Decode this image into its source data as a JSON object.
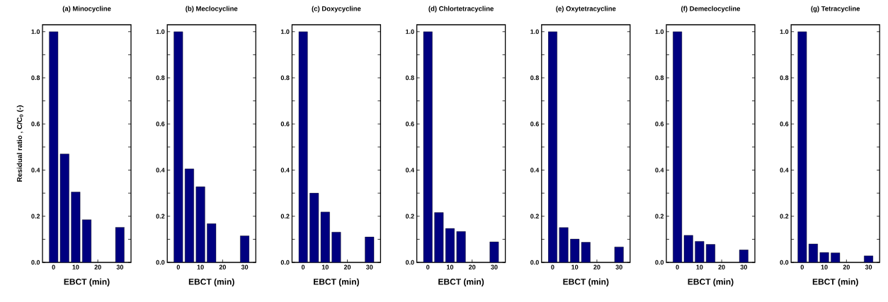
{
  "chart_data": [
    {
      "type": "bar",
      "title": "(a) Minocycline",
      "xlabel": "EBCT  (min)",
      "ylabel": "Residual ratio , C/C$_{0}$  (-)",
      "x": [
        0,
        5,
        10,
        15,
        30
      ],
      "values": [
        1.0,
        0.47,
        0.305,
        0.185,
        0.152
      ],
      "color": "#000080",
      "xlim": [
        -5,
        35
      ],
      "xticks": [
        0,
        10,
        20,
        30
      ],
      "ylim": [
        0,
        1.03
      ],
      "yticks": [
        {
          "value": 0,
          "label": "0.0"
        },
        {
          "value": 0.1,
          "label": null
        },
        0.2,
        {
          "value": 0.3,
          "label": null
        },
        0.4,
        {
          "value": 0.5,
          "label": null
        },
        0.6,
        {
          "value": 0.7,
          "label": null
        },
        0.8,
        {
          "value": 0.9,
          "label": null
        },
        {
          "value": 1,
          "label": "1.0"
        }
      ]
    },
    {
      "type": "bar",
      "title": "(b) Meclocycline",
      "xlabel": "EBCT  (min)",
      "x": [
        0,
        5,
        10,
        15,
        30
      ],
      "values": [
        1.0,
        0.405,
        0.328,
        0.168,
        0.115
      ],
      "color": "#000080",
      "xlim": [
        -5,
        35
      ],
      "xticks": [
        0,
        10,
        20,
        30
      ],
      "ylim": [
        0,
        1.03
      ],
      "yticks": [
        {
          "value": 0,
          "label": "0.0"
        },
        {
          "value": 0.1,
          "label": null
        },
        0.2,
        {
          "value": 0.3,
          "label": null
        },
        0.4,
        {
          "value": 0.5,
          "label": null
        },
        0.6,
        {
          "value": 0.7,
          "label": null
        },
        0.8,
        {
          "value": 0.9,
          "label": null
        },
        {
          "value": 1,
          "label": "1.0"
        }
      ]
    },
    {
      "type": "bar",
      "title": "(c) Doxycycline",
      "xlabel": "EBCT  (min)",
      "x": [
        0,
        5,
        10,
        15,
        30
      ],
      "values": [
        1.0,
        0.3,
        0.218,
        0.131,
        0.11
      ],
      "color": "#000080",
      "xlim": [
        -5,
        35
      ],
      "xticks": [
        0,
        10,
        20,
        30
      ],
      "ylim": [
        0,
        1.03
      ],
      "yticks": [
        {
          "value": 0,
          "label": "0.0"
        },
        {
          "value": 0.1,
          "label": null
        },
        0.2,
        {
          "value": 0.3,
          "label": null
        },
        0.4,
        {
          "value": 0.5,
          "label": null
        },
        0.6,
        {
          "value": 0.7,
          "label": null
        },
        0.8,
        {
          "value": 0.9,
          "label": null
        },
        {
          "value": 1,
          "label": "1.0"
        }
      ]
    },
    {
      "type": "bar",
      "title": "(d) Chlortetracycline",
      "xlabel": "EBCT  (min)",
      "x": [
        0,
        5,
        10,
        15,
        30
      ],
      "values": [
        1.0,
        0.216,
        0.147,
        0.134,
        0.089
      ],
      "color": "#000080",
      "xlim": [
        -5,
        35
      ],
      "xticks": [
        0,
        10,
        20,
        30
      ],
      "ylim": [
        0,
        1.03
      ],
      "yticks": [
        {
          "value": 0,
          "label": "0.0"
        },
        {
          "value": 0.1,
          "label": null
        },
        0.2,
        {
          "value": 0.3,
          "label": null
        },
        0.4,
        {
          "value": 0.5,
          "label": null
        },
        0.6,
        {
          "value": 0.7,
          "label": null
        },
        0.8,
        {
          "value": 0.9,
          "label": null
        },
        {
          "value": 1,
          "label": "1.0"
        }
      ]
    },
    {
      "type": "bar",
      "title": "(e) Oxytetracycline",
      "xlabel": "EBCT  (min)",
      "x": [
        0,
        5,
        10,
        15,
        30
      ],
      "values": [
        1.0,
        0.151,
        0.101,
        0.087,
        0.067
      ],
      "color": "#000080",
      "xlim": [
        -5,
        35
      ],
      "xticks": [
        0,
        10,
        20,
        30
      ],
      "ylim": [
        0,
        1.03
      ],
      "yticks": [
        {
          "value": 0,
          "label": "0.0"
        },
        {
          "value": 0.1,
          "label": null
        },
        0.2,
        {
          "value": 0.3,
          "label": null
        },
        0.4,
        {
          "value": 0.5,
          "label": null
        },
        0.6,
        {
          "value": 0.7,
          "label": null
        },
        0.8,
        {
          "value": 0.9,
          "label": null
        },
        {
          "value": 1,
          "label": "1.0"
        }
      ]
    },
    {
      "type": "bar",
      "title": "(f) Demeclocycline",
      "xlabel": "EBCT  (min)",
      "x": [
        0,
        5,
        10,
        15,
        30
      ],
      "values": [
        1.0,
        0.117,
        0.091,
        0.078,
        0.054
      ],
      "color": "#000080",
      "xlim": [
        -5,
        35
      ],
      "xticks": [
        0,
        10,
        20,
        30
      ],
      "ylim": [
        0,
        1.03
      ],
      "yticks": [
        {
          "value": 0,
          "label": "0.0"
        },
        {
          "value": 0.1,
          "label": null
        },
        0.2,
        {
          "value": 0.3,
          "label": null
        },
        0.4,
        {
          "value": 0.5,
          "label": null
        },
        0.6,
        {
          "value": 0.7,
          "label": null
        },
        0.8,
        {
          "value": 0.9,
          "label": null
        },
        {
          "value": 1,
          "label": "1.0"
        }
      ]
    },
    {
      "type": "bar",
      "title": "(g) Tetracycline",
      "xlabel": "EBCT  (min)",
      "x": [
        0,
        5,
        10,
        15,
        30
      ],
      "values": [
        1.0,
        0.08,
        0.043,
        0.041,
        0.028
      ],
      "color": "#000080",
      "xlim": [
        -5,
        35
      ],
      "xticks": [
        0,
        10,
        20,
        30
      ],
      "ylim": [
        0,
        1.03
      ],
      "yticks": [
        {
          "value": 0,
          "label": "0.0"
        },
        {
          "value": 0.1,
          "label": null
        },
        0.2,
        {
          "value": 0.3,
          "label": null
        },
        0.4,
        {
          "value": 0.5,
          "label": null
        },
        0.6,
        {
          "value": 0.7,
          "label": null
        },
        0.8,
        {
          "value": 0.9,
          "label": null
        },
        {
          "value": 1,
          "label": "1.0"
        }
      ]
    }
  ]
}
